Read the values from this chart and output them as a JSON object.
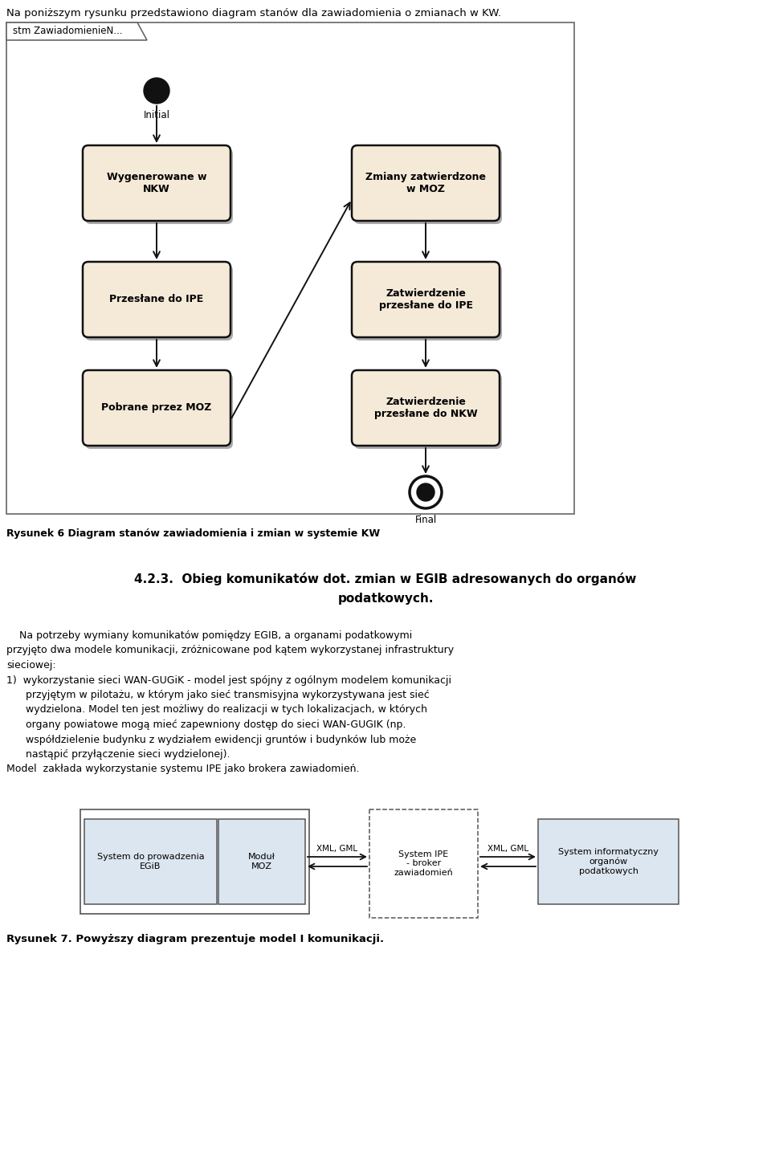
{
  "intro_text": "Na poniższym rysunku przedstawiono diagram stanów dla zawiadomienia o zmianach w KW.",
  "diagram_label": "stm ZawiadomienieN...",
  "caption1": "Rysunek 6 Diagram stanów zawiadomienia i zmian w systemie KW",
  "section_title_line1": "4.2.3.  Obieg komunikatów dot. zmian w EGIB adresowanych do organów",
  "section_title_line2": "podatkowych.",
  "body_lines": [
    {
      "text": "    Na potrzeby wymiany komunikatów pomiędzy EGIB, a organami podatkowymi",
      "indent": 0
    },
    {
      "text": "przyjęto dwa modele komunikacji, zróżnicowane pod kątem wykorzystanej infrastruktury",
      "indent": 0
    },
    {
      "text": "sieciowej:",
      "indent": 0
    },
    {
      "text": "1)  wykorzystanie sieci WAN-GUGiK - model jest spójny z ogólnym modelem komunikacji",
      "indent": 0
    },
    {
      "text": "      przyjętym w pilotażu, w którym jako sieć transmisyjna wykorzystywana jest sieć",
      "indent": 0
    },
    {
      "text": "      wydzielona. Model ten jest możliwy do realizacji w tych lokalizacjach, w których",
      "indent": 0
    },
    {
      "text": "      organy powiatowe mogą mieć zapewniony dostęp do sieci WAN-GUGIK (np.",
      "indent": 0
    },
    {
      "text": "      współdzielenie budynku z wydziałem ewidencji gruntów i budynków lub może",
      "indent": 0
    },
    {
      "text": "      nastąpić przyłączenie sieci wydzielonej).",
      "indent": 0
    },
    {
      "text": "Model  zakłada wykorzystanie systemu IPE jako brokera zawiadomień.",
      "indent": 0
    }
  ],
  "caption2": "Rysunek 7. Powyższy diagram prezentuje model I komunikacji.",
  "node_fill": "#f5ead8",
  "node_edge": "#111111",
  "bg_color": "#ffffff",
  "state_nodes": [
    {
      "id": "initial",
      "col": 0,
      "row": 0,
      "type": "circle_filled",
      "label": "Initial"
    },
    {
      "id": "wygenerowane",
      "col": 0,
      "row": 1,
      "type": "rounded_rect",
      "label": "Wygenerowane w\nNKW"
    },
    {
      "id": "przeslane_ipe",
      "col": 0,
      "row": 2,
      "type": "rounded_rect",
      "label": "Przesłane do IPE"
    },
    {
      "id": "pobrane_moz",
      "col": 0,
      "row": 3,
      "type": "rounded_rect",
      "label": "Pobrane przez MOZ"
    },
    {
      "id": "zmiany_zatw",
      "col": 1,
      "row": 1,
      "type": "rounded_rect",
      "label": "Zmiany zatwierdzone\nw MOZ"
    },
    {
      "id": "zatw_ipe",
      "col": 1,
      "row": 2,
      "type": "rounded_rect",
      "label": "Zatwierdzenie\nprzesłane do IPE"
    },
    {
      "id": "zatw_nkw",
      "col": 1,
      "row": 3,
      "type": "rounded_rect",
      "label": "Zatwierdzenie\nprzesłane do NKW"
    },
    {
      "id": "final",
      "col": 1,
      "row": 4,
      "type": "circle_final",
      "label": "Final"
    }
  ]
}
